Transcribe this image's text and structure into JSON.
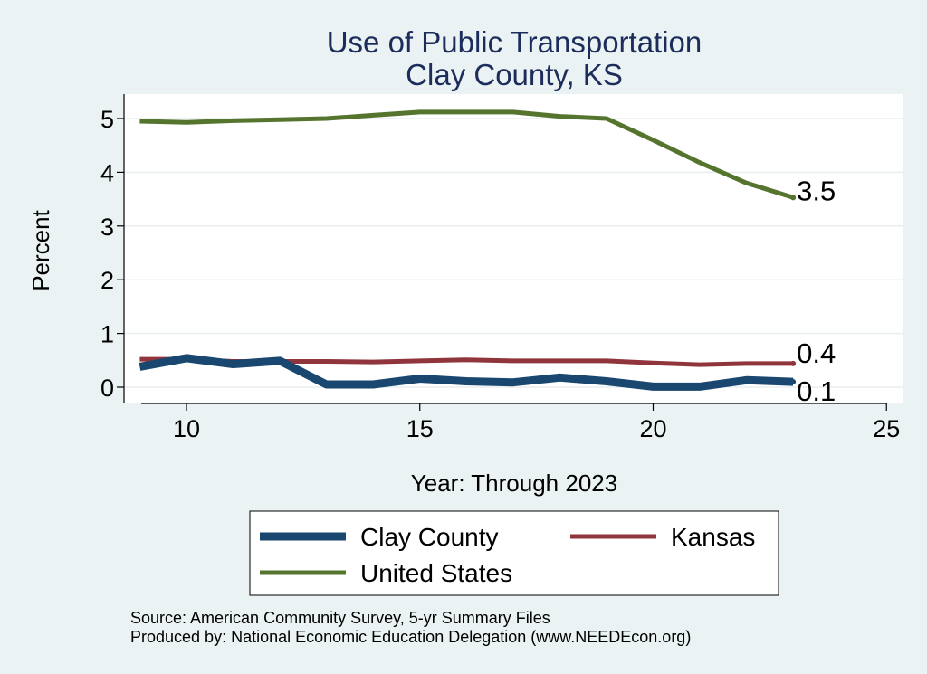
{
  "chart_data": {
    "type": "line",
    "title": "Use of Public Transportation",
    "subtitle": "Clay County, KS",
    "xlabel": "Year: Through 2023",
    "ylabel": "Percent",
    "xlim": [
      9,
      25
    ],
    "ylim": [
      0,
      5
    ],
    "x_ticks": [
      "10",
      "15",
      "20",
      "25"
    ],
    "y_ticks": [
      "0",
      "1",
      "2",
      "3",
      "4",
      "5"
    ],
    "grid": true,
    "legend_position": "bottom",
    "x": [
      9,
      10,
      11,
      12,
      13,
      14,
      15,
      16,
      17,
      18,
      19,
      20,
      21,
      22,
      23
    ],
    "series": [
      {
        "name": "Clay County",
        "color": "#1a476f",
        "values": [
          0.38,
          0.54,
          0.43,
          0.49,
          0.05,
          0.05,
          0.16,
          0.11,
          0.09,
          0.18,
          0.11,
          0.01,
          0.01,
          0.13,
          0.1
        ],
        "end_label": "0.1"
      },
      {
        "name": "Kansas",
        "color": "#90353b",
        "values": [
          0.52,
          0.52,
          0.48,
          0.48,
          0.48,
          0.47,
          0.49,
          0.51,
          0.49,
          0.49,
          0.49,
          0.45,
          0.42,
          0.44,
          0.44
        ],
        "end_label": "0.4"
      },
      {
        "name": "United States",
        "color": "#55752f",
        "values": [
          4.95,
          4.93,
          4.96,
          4.98,
          5.0,
          5.06,
          5.12,
          5.12,
          5.12,
          5.04,
          5.0,
          4.6,
          4.18,
          3.8,
          3.53
        ],
        "end_label": "3.5"
      }
    ],
    "source_note": "Source: American Community Survey, 5-yr Summary Files",
    "produced_note": "Produced by: National Economic Education Delegation (www.NEEDEcon.org)"
  }
}
